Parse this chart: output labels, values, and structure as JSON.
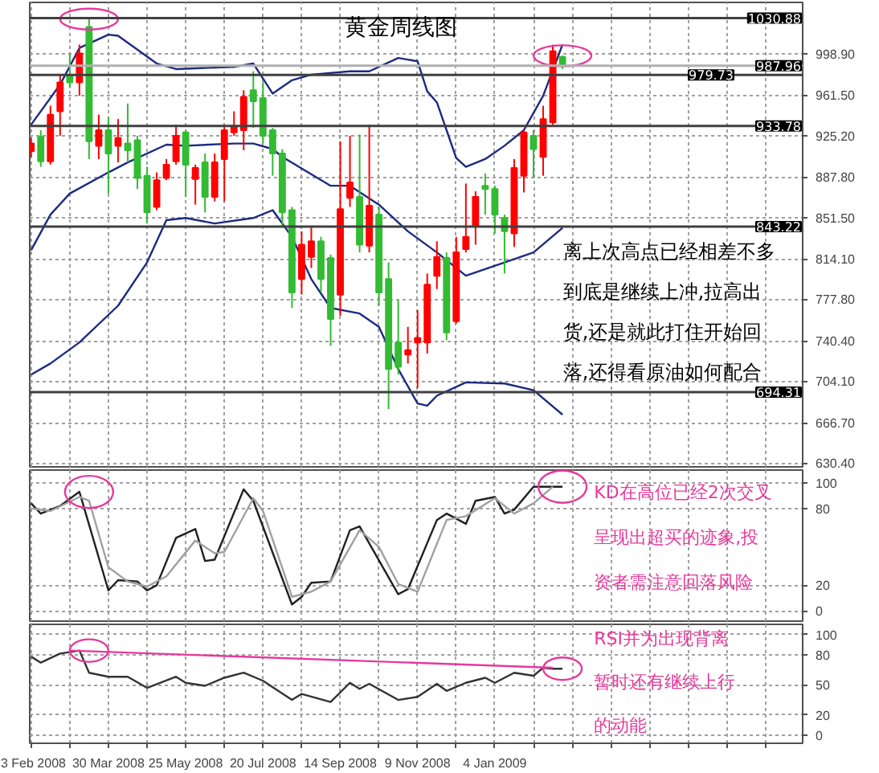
{
  "chart_data": [
    {
      "type": "candlestick",
      "title": "黄金周线图",
      "x": [
        "2008-02-03",
        "2008-02-10",
        "2008-02-17",
        "2008-02-24",
        "2008-03-02",
        "2008-03-09",
        "2008-03-16",
        "2008-03-23",
        "2008-03-30",
        "2008-04-06",
        "2008-04-13",
        "2008-04-20",
        "2008-04-27",
        "2008-05-04",
        "2008-05-11",
        "2008-05-18",
        "2008-05-25",
        "2008-06-01",
        "2008-06-08",
        "2008-06-15",
        "2008-06-22",
        "2008-06-29",
        "2008-07-06",
        "2008-07-13",
        "2008-07-20",
        "2008-07-27",
        "2008-08-03",
        "2008-08-10",
        "2008-08-17",
        "2008-08-24",
        "2008-08-31",
        "2008-09-07",
        "2008-09-14",
        "2008-09-21",
        "2008-09-28",
        "2008-10-05",
        "2008-10-12",
        "2008-10-19",
        "2008-10-26",
        "2008-11-02",
        "2008-11-09",
        "2008-11-16",
        "2008-11-23",
        "2008-11-30",
        "2008-12-07",
        "2008-12-14",
        "2008-12-21",
        "2008-12-28",
        "2009-01-04",
        "2009-01-11",
        "2009-01-18",
        "2009-01-25",
        "2009-02-01",
        "2009-02-08",
        "2009-02-15",
        "2009-02-22"
      ],
      "ohlc": [
        [
          911,
          923,
          906,
          918
        ],
        [
          924,
          930,
          897,
          902
        ],
        [
          902,
          952,
          899,
          944
        ],
        [
          947,
          980,
          925,
          973
        ],
        [
          980,
          999,
          968,
          973
        ],
        [
          973,
          1007,
          961,
          999
        ],
        [
          1023,
          1030,
          904,
          920
        ],
        [
          916,
          944,
          904,
          930
        ],
        [
          930,
          942,
          873,
          909
        ],
        [
          916,
          940,
          901,
          923
        ],
        [
          918,
          954,
          901,
          912
        ],
        [
          921,
          925,
          877,
          887
        ],
        [
          889,
          897,
          846,
          856
        ],
        [
          861,
          892,
          858,
          885
        ],
        [
          887,
          904,
          885,
          899
        ],
        [
          902,
          935,
          899,
          925
        ],
        [
          928,
          930,
          870,
          899
        ],
        [
          886,
          899,
          863,
          896
        ],
        [
          901,
          909,
          856,
          870
        ],
        [
          870,
          909,
          866,
          901
        ],
        [
          904,
          935,
          866,
          930
        ],
        [
          928,
          947,
          925,
          934
        ],
        [
          930,
          966,
          912,
          960
        ],
        [
          966,
          983,
          932,
          956
        ],
        [
          959,
          974,
          918,
          925
        ],
        [
          930,
          932,
          889,
          909
        ],
        [
          909,
          913,
          844,
          856
        ],
        [
          858,
          861,
          770,
          784
        ],
        [
          796,
          839,
          782,
          827
        ],
        [
          816,
          844,
          806,
          830
        ],
        [
          830,
          834,
          784,
          796
        ],
        [
          815,
          818,
          736,
          760
        ],
        [
          782,
          920,
          763,
          859
        ],
        [
          869,
          925,
          861,
          883
        ],
        [
          870,
          926,
          820,
          827
        ],
        [
          826,
          935,
          820,
          862
        ],
        [
          854,
          861,
          772,
          784
        ],
        [
          796,
          811,
          679,
          715
        ],
        [
          739,
          777,
          710,
          717
        ],
        [
          728,
          753,
          720,
          732
        ],
        [
          739,
          768,
          698,
          743
        ],
        [
          739,
          801,
          729,
          791
        ],
        [
          799,
          830,
          787,
          816
        ],
        [
          815,
          820,
          741,
          748
        ],
        [
          758,
          834,
          756,
          820
        ],
        [
          823,
          882,
          820,
          834
        ],
        [
          844,
          875,
          827,
          870
        ],
        [
          880,
          891,
          854,
          877
        ],
        [
          877,
          880,
          837,
          854
        ],
        [
          851,
          854,
          801,
          839
        ],
        [
          837,
          904,
          825,
          896
        ],
        [
          889,
          930,
          874,
          928
        ],
        [
          925,
          930,
          887,
          913
        ],
        [
          906,
          952,
          889,
          940
        ],
        [
          937,
          1007,
          935,
          1001
        ],
        [
          996,
          997,
          985,
          988
        ]
      ],
      "colors": [
        "#ff0000",
        "#33bb33",
        "#ff0000",
        "#ff0000",
        "#33bb33",
        "#ff0000",
        "#33bb33",
        "#ff0000",
        "#33bb33",
        "#ff0000",
        "#33bb33",
        "#33bb33",
        "#33bb33",
        "#ff0000",
        "#ff0000",
        "#ff0000",
        "#33bb33",
        "#ff0000",
        "#33bb33",
        "#ff0000",
        "#ff0000",
        "#ff0000",
        "#ff0000",
        "#33bb33",
        "#33bb33",
        "#33bb33",
        "#33bb33",
        "#33bb33",
        "#ff0000",
        "#ff0000",
        "#33bb33",
        "#33bb33",
        "#ff0000",
        "#ff0000",
        "#33bb33",
        "#ff0000",
        "#33bb33",
        "#33bb33",
        "#33bb33",
        "#ff0000",
        "#ff0000",
        "#ff0000",
        "#ff0000",
        "#33bb33",
        "#ff0000",
        "#ff0000",
        "#ff0000",
        "#33bb33",
        "#33bb33",
        "#33bb33",
        "#ff0000",
        "#ff0000",
        "#33bb33",
        "#ff0000",
        "#ff0000",
        "#33bb33"
      ],
      "series": [
        {
          "type": "line",
          "color": "#1c2a80",
          "x": [
            "2008-02-03",
            "2008-02-24",
            "2008-03-09",
            "2008-03-30",
            "2008-04-06",
            "2008-05-04",
            "2008-05-18",
            "2008-06-29",
            "2008-07-13",
            "2008-07-27",
            "2008-08-10",
            "2008-08-24",
            "2008-09-21",
            "2008-10-05",
            "2008-10-26",
            "2008-11-09",
            "2008-11-16",
            "2008-11-23",
            "2008-11-30",
            "2008-12-07",
            "2008-12-14",
            "2008-12-28",
            "2009-01-11",
            "2009-01-25",
            "2009-02-08",
            "2009-02-22"
          ],
          "values": [
            935,
            971,
            1004,
            1016,
            1015,
            990,
            985,
            987,
            990,
            963,
            975,
            980,
            983,
            983,
            995,
            992,
            965,
            955,
            930,
            905,
            897,
            904,
            916,
            930,
            961,
            1007
          ]
        },
        {
          "type": "line",
          "color": "#1c2a80",
          "x": [
            "2008-02-03",
            "2008-02-17",
            "2008-03-02",
            "2008-03-30",
            "2008-04-13",
            "2008-05-11",
            "2008-05-25",
            "2008-06-29",
            "2008-07-13",
            "2008-07-27",
            "2008-08-03",
            "2008-09-07",
            "2008-09-21",
            "2008-10-12",
            "2008-11-02",
            "2008-11-23",
            "2008-12-14",
            "2009-01-11",
            "2009-02-01",
            "2009-02-22"
          ],
          "values": [
            822,
            854,
            873,
            892,
            901,
            917,
            916,
            918,
            918,
            913,
            906,
            880,
            880,
            863,
            839,
            820,
            799,
            811,
            820,
            842
          ]
        },
        {
          "type": "line",
          "color": "#1c2a80",
          "x": [
            "2008-02-03",
            "2008-02-17",
            "2008-03-09",
            "2008-04-06",
            "2008-04-27",
            "2008-05-11",
            "2008-05-25",
            "2008-06-15",
            "2008-07-13",
            "2008-07-27",
            "2008-08-10",
            "2008-08-24",
            "2008-09-07",
            "2008-09-28",
            "2008-10-12",
            "2008-10-26",
            "2008-11-09",
            "2008-11-16",
            "2008-11-23",
            "2008-12-14",
            "2009-01-11",
            "2009-02-01",
            "2009-02-22"
          ],
          "values": [
            710,
            720,
            739,
            772,
            811,
            849,
            851,
            846,
            851,
            858,
            834,
            796,
            770,
            765,
            753,
            715,
            684,
            682,
            691,
            703,
            702,
            696,
            674
          ]
        }
      ],
      "ref_lines": [
        {
          "axis": "y",
          "value": 1030.88,
          "label": "1030.88",
          "color": "#404040"
        },
        {
          "axis": "y",
          "value": 987.96,
          "label": "987.96",
          "color": "#b0b0b0"
        },
        {
          "axis": "y",
          "value": 979.73,
          "label": "979.73",
          "color": "#404040"
        },
        {
          "axis": "y",
          "value": 933.78,
          "label": "933.78",
          "color": "#404040"
        },
        {
          "axis": "y",
          "value": 843.22,
          "label": "843.22",
          "color": "#404040"
        },
        {
          "axis": "y",
          "value": 694.31,
          "label": "694.31",
          "color": "#404040"
        }
      ],
      "annotations": [
        "离上次高点已经相差不多",
        "到底是继续上冲,拉高出",
        "货,还是就此打住开始回",
        "落,还得看原油如何配合"
      ],
      "xlim": [
        "2008-02-02",
        "2009-08-15"
      ],
      "ylim": [
        627,
        1045
      ],
      "xticks": [
        {
          "value": "2008-02-03",
          "label": null
        },
        {
          "value": "2008-03-02",
          "label": null
        },
        {
          "value": "2008-03-30",
          "label": null
        },
        {
          "value": "2008-04-27",
          "label": null
        },
        {
          "value": "2008-05-25",
          "label": null
        },
        {
          "value": "2008-06-22",
          "label": null
        },
        {
          "value": "2008-07-20",
          "label": null
        },
        {
          "value": "2008-08-17",
          "label": null
        },
        {
          "value": "2008-09-14",
          "label": null
        },
        {
          "value": "2008-10-12",
          "label": null
        },
        {
          "value": "2008-11-09",
          "label": null
        },
        {
          "value": "2008-12-07",
          "label": null
        },
        {
          "value": "2009-01-04",
          "label": null
        },
        {
          "value": "2009-02-01",
          "label": null
        },
        {
          "value": "2009-03-01",
          "label": null
        },
        {
          "value": "2009-03-29",
          "label": null
        },
        {
          "value": "2009-04-26",
          "label": null
        },
        {
          "value": "2009-05-24",
          "label": null
        },
        {
          "value": "2009-06-21",
          "label": null
        },
        {
          "value": "2009-07-19",
          "label": null
        }
      ],
      "yticks": [
        {
          "value": 630.4,
          "label": "630.40"
        },
        {
          "value": 666.7,
          "label": "666.70"
        },
        {
          "value": 704.1,
          "label": "704.10"
        },
        {
          "value": 740.4,
          "label": "740.40"
        },
        {
          "value": 777.8,
          "label": "777.80"
        },
        {
          "value": 814.1,
          "label": "814.10"
        },
        {
          "value": 851.5,
          "label": "851.50"
        },
        {
          "value": 887.8,
          "label": "887.80"
        },
        {
          "value": 925.2,
          "label": "925.20"
        },
        {
          "value": 961.5,
          "label": "961.50"
        },
        {
          "value": 998.9,
          "label": "998.90"
        }
      ],
      "grid": true,
      "tick_labels": "y"
    },
    {
      "type": "line",
      "series": [
        {
          "color": "#202020",
          "x": [
            "2008-02-03",
            "2008-02-10",
            "2008-02-24",
            "2008-03-09",
            "2008-03-30",
            "2008-04-06",
            "2008-04-20",
            "2008-04-27",
            "2008-05-04",
            "2008-05-18",
            "2008-06-01",
            "2008-06-08",
            "2008-06-15",
            "2008-07-06",
            "2008-07-13",
            "2008-08-10",
            "2008-08-17",
            "2008-08-24",
            "2008-09-07",
            "2008-09-21",
            "2008-09-28",
            "2008-10-26",
            "2008-11-02",
            "2008-11-23",
            "2008-11-30",
            "2008-12-14",
            "2008-12-21",
            "2009-01-04",
            "2009-01-11",
            "2009-01-18",
            "2009-02-01",
            "2009-02-15",
            "2009-02-22"
          ],
          "values": [
            84,
            76,
            82,
            93,
            16,
            24,
            23,
            16,
            20,
            57,
            64,
            39,
            40,
            95,
            86,
            5,
            11,
            22,
            23,
            63,
            66,
            13,
            17,
            71,
            76,
            68,
            86,
            89,
            76,
            79,
            97,
            97,
            97
          ]
        },
        {
          "color": "#a0a0a0",
          "x": [
            "2008-02-03",
            "2008-02-17",
            "2008-03-09",
            "2008-03-16",
            "2008-03-30",
            "2008-04-13",
            "2008-04-27",
            "2008-05-11",
            "2008-06-01",
            "2008-06-15",
            "2008-06-22",
            "2008-07-13",
            "2008-07-20",
            "2008-08-10",
            "2008-08-24",
            "2008-09-07",
            "2008-09-28",
            "2008-10-12",
            "2008-10-26",
            "2008-11-09",
            "2008-11-30",
            "2008-12-14",
            "2009-01-04",
            "2009-01-18",
            "2009-02-01",
            "2009-02-15"
          ],
          "values": [
            80,
            78,
            89,
            86,
            34,
            23,
            19,
            27,
            55,
            45,
            46,
            88,
            78,
            11,
            15,
            23,
            63,
            50,
            21,
            15,
            71,
            74,
            88,
            76,
            84,
            97
          ]
        }
      ],
      "annotations": [
        "KD在高位已经2次交叉",
        "呈现出超买的迹象,投",
        "资者需注意回落风险"
      ],
      "xlim": [
        "2008-02-02",
        "2009-08-15"
      ],
      "ylim": [
        -8,
        110
      ],
      "xticks": [
        {
          "value": "2008-02-03",
          "label": null
        },
        {
          "value": "2008-03-02",
          "label": null
        },
        {
          "value": "2008-03-30",
          "label": null
        },
        {
          "value": "2008-04-27",
          "label": null
        },
        {
          "value": "2008-05-25",
          "label": null
        },
        {
          "value": "2008-06-22",
          "label": null
        },
        {
          "value": "2008-07-20",
          "label": null
        },
        {
          "value": "2008-08-17",
          "label": null
        },
        {
          "value": "2008-09-14",
          "label": null
        },
        {
          "value": "2008-10-12",
          "label": null
        },
        {
          "value": "2008-11-09",
          "label": null
        },
        {
          "value": "2008-12-07",
          "label": null
        },
        {
          "value": "2009-01-04",
          "label": null
        },
        {
          "value": "2009-02-01",
          "label": null
        },
        {
          "value": "2009-03-01",
          "label": null
        },
        {
          "value": "2009-03-29",
          "label": null
        },
        {
          "value": "2009-04-26",
          "label": null
        },
        {
          "value": "2009-05-24",
          "label": null
        },
        {
          "value": "2009-06-21",
          "label": null
        },
        {
          "value": "2009-07-19",
          "label": null
        }
      ],
      "yticks": [
        0,
        20,
        80,
        100
      ],
      "grid": true,
      "tick_labels": "y"
    },
    {
      "type": "line",
      "series": [
        {
          "color": "#333333",
          "x": [
            "2008-02-03",
            "2008-02-10",
            "2008-02-24",
            "2008-03-09",
            "2008-03-16",
            "2008-03-30",
            "2008-04-13",
            "2008-04-27",
            "2008-05-18",
            "2008-05-25",
            "2008-06-08",
            "2008-06-22",
            "2008-07-06",
            "2008-07-20",
            "2008-08-10",
            "2008-08-17",
            "2008-09-07",
            "2008-09-21",
            "2008-09-28",
            "2008-10-05",
            "2008-10-26",
            "2008-11-09",
            "2008-11-23",
            "2008-11-30",
            "2008-12-14",
            "2008-12-28",
            "2009-01-04",
            "2009-01-18",
            "2009-02-01",
            "2009-02-08",
            "2009-02-15",
            "2009-02-22"
          ],
          "values": [
            78,
            72,
            81,
            84,
            62,
            58,
            58,
            47,
            58,
            52,
            49,
            57,
            62,
            54,
            35,
            41,
            33,
            52,
            46,
            51,
            35,
            38,
            51,
            44,
            52,
            57,
            52,
            62,
            59,
            67,
            66,
            66
          ]
        },
        {
          "color": "#e6399b",
          "x": [
            "2008-03-02",
            "2009-02-15"
          ],
          "values": [
            84,
            67
          ]
        }
      ],
      "annotations": [
        "RSI并为出现背离",
        "暂时还有继续上行",
        "的动能"
      ],
      "xlim": [
        "2008-02-02",
        "2009-08-15"
      ],
      "ylim": [
        -8,
        110
      ],
      "xticks": [
        {
          "value": "2008-02-03",
          "label": "3 Feb 2008"
        },
        {
          "value": "2008-03-02",
          "label": null
        },
        {
          "value": "2008-03-30",
          "label": "30 Mar 2008"
        },
        {
          "value": "2008-04-27",
          "label": null
        },
        {
          "value": "2008-05-25",
          "label": "25 May 2008"
        },
        {
          "value": "2008-06-22",
          "label": null
        },
        {
          "value": "2008-07-20",
          "label": "20 Jul 2008"
        },
        {
          "value": "2008-08-17",
          "label": null
        },
        {
          "value": "2008-09-14",
          "label": "14 Sep 2008"
        },
        {
          "value": "2008-10-12",
          "label": null
        },
        {
          "value": "2008-11-09",
          "label": "9 Nov 2008"
        },
        {
          "value": "2008-12-07",
          "label": null
        },
        {
          "value": "2009-01-04",
          "label": "4 Jan 2009"
        },
        {
          "value": "2009-02-01",
          "label": null
        },
        {
          "value": "2009-03-01",
          "label": null
        },
        {
          "value": "2009-03-29",
          "label": null
        },
        {
          "value": "2009-04-26",
          "label": null
        },
        {
          "value": "2009-05-24",
          "label": null
        },
        {
          "value": "2009-06-21",
          "label": null
        },
        {
          "value": "2009-07-19",
          "label": null
        }
      ],
      "yticks": [
        0,
        20,
        50,
        80,
        100
      ],
      "grid": true
    }
  ]
}
